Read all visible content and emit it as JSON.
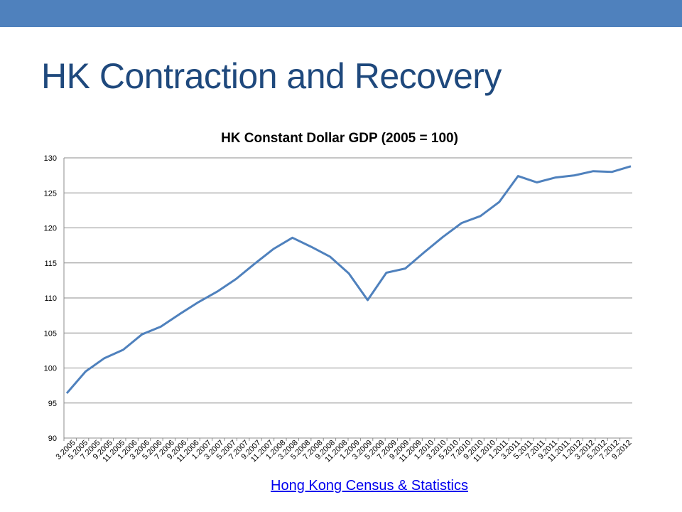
{
  "slide": {
    "title": "HK Contraction and Recovery",
    "source_link": "Hong Kong Census & Statistics",
    "accent_color": "#4f81bd",
    "title_color": "#1f497d"
  },
  "chart_data": {
    "type": "line",
    "title": "HK Constant Dollar GDP (2005 = 100)",
    "xlabel": "",
    "ylabel": "",
    "ylim": [
      90,
      130
    ],
    "y_ticks": [
      90,
      95,
      100,
      105,
      110,
      115,
      120,
      125,
      130
    ],
    "grid": true,
    "legend": "none",
    "line_color": "#4f81bd",
    "categories": [
      "3.2005",
      "5.2005",
      "7.2005",
      "9.2005",
      "11.2005",
      "1.2006",
      "3.2006",
      "5.2006",
      "7.2006",
      "9.2006",
      "11.2006",
      "1.2007",
      "3.2007",
      "5.2007",
      "7.2007",
      "9.2007",
      "11.2007",
      "1.2008",
      "3.2008",
      "5.2008",
      "7.2008",
      "9.2008",
      "11.2008",
      "1.2009",
      "3.2009",
      "5.2009",
      "7.2009",
      "9.2009",
      "11.2009",
      "1.2010",
      "3.2010",
      "5.2010",
      "7.2010",
      "9.2010",
      "11.2010",
      "1.2011",
      "3.2011",
      "5.2011",
      "7.2011",
      "9.2011",
      "11.2011",
      "1.2012",
      "3.2012",
      "5.2012",
      "7.2012",
      "9.2012"
    ],
    "x": [
      "3.2005",
      "6.2005",
      "9.2005",
      "12.2005",
      "3.2006",
      "6.2006",
      "9.2006",
      "12.2006",
      "3.2007",
      "6.2007",
      "9.2007",
      "12.2007",
      "3.2008",
      "6.2008",
      "9.2008",
      "12.2008",
      "3.2009",
      "6.2009",
      "9.2009",
      "12.2009",
      "3.2010",
      "6.2010",
      "9.2010",
      "12.2010",
      "3.2011",
      "6.2011",
      "9.2011",
      "12.2011",
      "3.2012",
      "6.2012",
      "9.2012"
    ],
    "values": [
      96.4,
      99.5,
      101.4,
      102.6,
      104.8,
      105.9,
      107.7,
      109.4,
      110.9,
      112.7,
      114.9,
      117.0,
      118.6,
      117.3,
      115.9,
      113.5,
      109.7,
      113.6,
      114.2,
      116.5,
      118.7,
      120.7,
      121.7,
      123.7,
      127.4,
      126.5,
      127.2,
      127.5,
      128.1,
      128.0,
      128.8
    ]
  }
}
